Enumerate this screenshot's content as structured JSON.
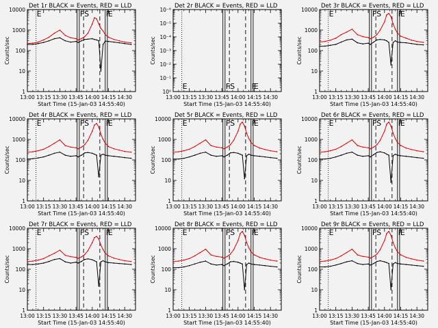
{
  "page": {
    "background": "#f2f2f2",
    "axis_color": "#000000"
  },
  "shared": {
    "xlabel": "Start Time (15-Jan-03 14:55:40)",
    "ylabel": "Counts/sec",
    "x_ticks": [
      "13:00",
      "13:15",
      "13:30",
      "13:45",
      "14:00",
      "14:15",
      "14:30"
    ],
    "x_tick_minutes": [
      0,
      15,
      30,
      45,
      60,
      75,
      90
    ],
    "xlim_minutes": [
      0,
      100
    ],
    "markers": [
      {
        "t": 8,
        "style": "dotted",
        "label": "E"
      },
      {
        "t": 46,
        "style": "solid",
        "label": ""
      },
      {
        "t": 48,
        "style": "solid",
        "label": "F"
      },
      {
        "t": 52,
        "style": "dashed",
        "label": "S"
      },
      {
        "t": 67,
        "style": "dashed",
        "label": ""
      },
      {
        "t": 72,
        "style": "solid",
        "label": "F"
      },
      {
        "t": 74,
        "style": "solid",
        "label": "E"
      }
    ],
    "series": [
      {
        "name": "BLACK = Events",
        "color": "#000000"
      },
      {
        "name": "RED = LLD",
        "color": "#e00000"
      }
    ]
  },
  "chart_data": [
    {
      "type": "line",
      "title": "Det 1r  BLACK = Events, RED = LLD",
      "scale": "log",
      "ylim": [
        1,
        10000
      ],
      "y_ticks": [
        "1",
        "10",
        "100",
        "1000",
        "10000"
      ],
      "x": [
        0,
        5,
        10,
        15,
        20,
        25,
        30,
        35,
        40,
        45,
        47,
        50,
        53,
        56,
        60,
        62,
        64,
        66,
        68,
        70,
        72,
        75,
        80,
        85,
        90,
        96
      ],
      "series": [
        {
          "name": "BLACK = Events",
          "values": [
            200,
            200,
            220,
            250,
            300,
            380,
            420,
            300,
            260,
            280,
            250,
            300,
            350,
            360,
            380,
            350,
            330,
            300,
            10,
            200,
            290,
            280,
            260,
            240,
            220,
            200
          ]
        },
        {
          "name": "RED = LLD",
          "values": [
            220,
            230,
            260,
            330,
            450,
            700,
            1000,
            550,
            420,
            380,
            330,
            380,
            480,
            700,
            2000,
            4000,
            3500,
            2000,
            1200,
            900,
            600,
            450,
            350,
            300,
            260,
            240
          ]
        }
      ]
    },
    {
      "type": "line",
      "title": "Det 2r  BLACK = Events, RED = LLD",
      "scale": "log_empty",
      "ylim": [
        1,
        1e-06
      ],
      "y_ticks": [
        "10⁰",
        "10⁻¹",
        "10⁻²",
        "10⁻³",
        "10⁻⁴",
        "10⁻⁵",
        "10⁻⁶"
      ],
      "series": []
    },
    {
      "type": "line",
      "title": "Det 3r  BLACK = Events, RED = LLD",
      "scale": "log",
      "ylim": [
        1,
        10000
      ],
      "y_ticks": [
        "1",
        "10",
        "100",
        "1000",
        "10000"
      ],
      "x": [
        0,
        5,
        10,
        15,
        20,
        25,
        30,
        35,
        40,
        45,
        47,
        50,
        53,
        56,
        60,
        62,
        64,
        66,
        68,
        70,
        72,
        75,
        80,
        85,
        90,
        96
      ],
      "series": [
        {
          "name": "BLACK = Events",
          "values": [
            160,
            165,
            180,
            200,
            260,
            330,
            360,
            240,
            210,
            230,
            200,
            260,
            330,
            350,
            330,
            300,
            250,
            20,
            250,
            300,
            260,
            250,
            240,
            220,
            200,
            190
          ]
        },
        {
          "name": "RED = LLD",
          "values": [
            260,
            280,
            320,
            400,
            600,
            800,
            1100,
            600,
            480,
            430,
            380,
            450,
            600,
            1000,
            2500,
            5500,
            6500,
            4500,
            2000,
            1100,
            700,
            500,
            400,
            320,
            280,
            250
          ]
        }
      ]
    },
    {
      "type": "line",
      "title": "Det 4r  BLACK = Events, RED = LLD",
      "scale": "log",
      "ylim": [
        1,
        10000
      ],
      "y_ticks": [
        "1",
        "10",
        "100",
        "1000",
        "10000"
      ],
      "x": [
        0,
        5,
        10,
        15,
        20,
        25,
        30,
        35,
        40,
        45,
        47,
        50,
        53,
        56,
        60,
        62,
        64,
        66,
        68,
        70,
        72,
        75,
        80,
        85,
        90,
        96
      ],
      "series": [
        {
          "name": "BLACK = Events",
          "values": [
            110,
            115,
            125,
            140,
            170,
            210,
            240,
            170,
            150,
            160,
            140,
            170,
            220,
            230,
            210,
            190,
            170,
            15,
            170,
            190,
            170,
            160,
            150,
            140,
            130,
            120
          ]
        },
        {
          "name": "RED = LLD",
          "values": [
            240,
            250,
            280,
            330,
            450,
            650,
            950,
            500,
            420,
            390,
            350,
            420,
            550,
            900,
            2500,
            5000,
            6000,
            4000,
            1800,
            1000,
            650,
            450,
            350,
            300,
            260,
            240
          ]
        }
      ]
    },
    {
      "type": "line",
      "title": "Det 5r  BLACK = Events, RED = LLD",
      "scale": "log",
      "ylim": [
        1,
        10000
      ],
      "y_ticks": [
        "1",
        "10",
        "100",
        "1000",
        "10000"
      ],
      "x": [
        0,
        5,
        10,
        15,
        20,
        25,
        30,
        35,
        40,
        45,
        47,
        50,
        53,
        56,
        60,
        62,
        64,
        66,
        68,
        70,
        72,
        75,
        80,
        85,
        90,
        96
      ],
      "series": [
        {
          "name": "BLACK = Events",
          "values": [
            110,
            110,
            120,
            140,
            170,
            210,
            240,
            170,
            150,
            160,
            140,
            170,
            220,
            230,
            210,
            190,
            170,
            12,
            160,
            190,
            170,
            160,
            150,
            140,
            130,
            120
          ]
        },
        {
          "name": "RED = LLD",
          "values": [
            240,
            250,
            280,
            330,
            450,
            650,
            950,
            500,
            420,
            390,
            350,
            420,
            550,
            900,
            2500,
            5500,
            7000,
            4500,
            2000,
            1100,
            700,
            500,
            380,
            320,
            280,
            250
          ]
        }
      ]
    },
    {
      "type": "line",
      "title": "Det 6r  BLACK = Events, RED = LLD",
      "scale": "log",
      "ylim": [
        1,
        10000
      ],
      "y_ticks": [
        "1",
        "10",
        "100",
        "1000",
        "10000"
      ],
      "x": [
        0,
        5,
        10,
        15,
        20,
        25,
        30,
        35,
        40,
        45,
        47,
        50,
        53,
        56,
        60,
        62,
        64,
        66,
        68,
        70,
        72,
        75,
        80,
        85,
        90,
        96
      ],
      "series": [
        {
          "name": "BLACK = Events",
          "values": [
            110,
            110,
            120,
            140,
            170,
            210,
            240,
            170,
            150,
            160,
            140,
            180,
            230,
            250,
            220,
            190,
            170,
            8,
            160,
            190,
            170,
            160,
            150,
            140,
            130,
            120
          ]
        },
        {
          "name": "RED = LLD",
          "values": [
            240,
            250,
            280,
            330,
            450,
            650,
            950,
            500,
            420,
            390,
            350,
            420,
            550,
            900,
            2500,
            5500,
            7000,
            4500,
            2000,
            1100,
            700,
            500,
            380,
            320,
            280,
            250
          ]
        }
      ]
    },
    {
      "type": "line",
      "title": "Det 7r  BLACK = Events, RED = LLD",
      "scale": "log",
      "ylim": [
        1,
        10000
      ],
      "y_ticks": [
        "1",
        "10",
        "100",
        "1000",
        "10000"
      ],
      "x": [
        0,
        5,
        10,
        15,
        20,
        25,
        30,
        35,
        40,
        45,
        47,
        50,
        53,
        56,
        60,
        62,
        64,
        66,
        68,
        70,
        72,
        75,
        80,
        85,
        90,
        96
      ],
      "series": [
        {
          "name": "BLACK = Events",
          "values": [
            170,
            170,
            180,
            200,
            240,
            300,
            330,
            230,
            200,
            220,
            200,
            240,
            300,
            320,
            290,
            260,
            230,
            15,
            230,
            260,
            230,
            210,
            200,
            190,
            180,
            170
          ]
        },
        {
          "name": "RED = LLD",
          "values": [
            240,
            250,
            280,
            330,
            450,
            600,
            850,
            480,
            410,
            380,
            340,
            400,
            520,
            800,
            2000,
            3500,
            4000,
            3000,
            1500,
            900,
            600,
            450,
            350,
            300,
            260,
            240
          ]
        }
      ]
    },
    {
      "type": "line",
      "title": "Det 8r  BLACK = Events, RED = LLD",
      "scale": "log",
      "ylim": [
        1,
        10000
      ],
      "y_ticks": [
        "1",
        "10",
        "100",
        "1000",
        "10000"
      ],
      "x": [
        0,
        5,
        10,
        15,
        20,
        25,
        30,
        35,
        40,
        45,
        47,
        50,
        53,
        56,
        60,
        62,
        64,
        66,
        68,
        70,
        72,
        75,
        80,
        85,
        90,
        96
      ],
      "series": [
        {
          "name": "BLACK = Events",
          "values": [
            120,
            120,
            130,
            150,
            180,
            220,
            250,
            180,
            160,
            170,
            150,
            180,
            230,
            240,
            220,
            200,
            180,
            10,
            170,
            200,
            180,
            170,
            160,
            150,
            140,
            130
          ]
        },
        {
          "name": "RED = LLD",
          "values": [
            240,
            250,
            280,
            330,
            450,
            650,
            950,
            500,
            420,
            390,
            350,
            420,
            550,
            900,
            2500,
            5500,
            7000,
            4500,
            2000,
            1100,
            700,
            500,
            380,
            320,
            280,
            250
          ]
        }
      ]
    },
    {
      "type": "line",
      "title": "Det 9r  BLACK = Events, RED = LLD",
      "scale": "log",
      "ylim": [
        1,
        10000
      ],
      "y_ticks": [
        "1",
        "10",
        "100",
        "1000",
        "10000"
      ],
      "x": [
        0,
        5,
        10,
        15,
        20,
        25,
        30,
        35,
        40,
        45,
        47,
        50,
        53,
        56,
        60,
        62,
        64,
        66,
        68,
        70,
        72,
        75,
        80,
        85,
        90,
        96
      ],
      "series": [
        {
          "name": "BLACK = Events",
          "values": [
            130,
            130,
            140,
            160,
            190,
            230,
            260,
            190,
            170,
            180,
            160,
            190,
            240,
            260,
            230,
            210,
            190,
            10,
            180,
            210,
            190,
            180,
            170,
            160,
            150,
            140
          ]
        },
        {
          "name": "RED = LLD",
          "values": [
            240,
            250,
            280,
            330,
            450,
            650,
            950,
            500,
            420,
            390,
            350,
            420,
            550,
            900,
            2500,
            5500,
            7000,
            4500,
            2000,
            1100,
            700,
            500,
            380,
            320,
            280,
            250
          ]
        }
      ]
    }
  ]
}
